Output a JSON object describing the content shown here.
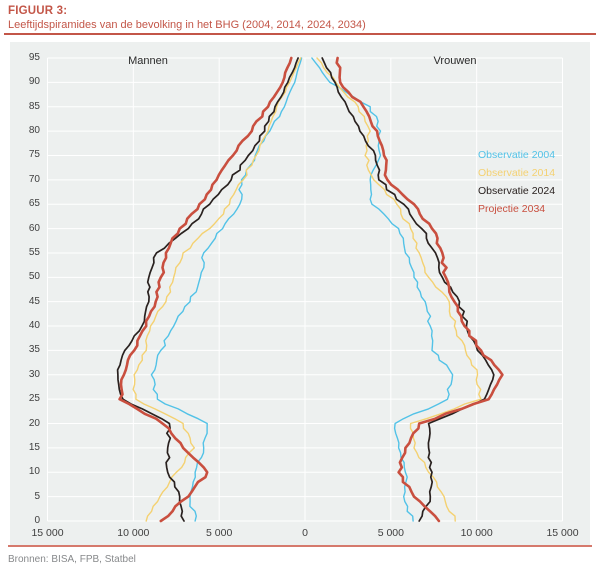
{
  "page": {
    "figure_label": "FIGUUR 3:",
    "figure_title": "Leeftijdspiramides van de bevolking in het BHG (2004, 2014, 2024, 2034)",
    "source": "Bronnen: BISA, FPB, Statbel"
  },
  "colors": {
    "accent": "#c35648",
    "rule_bottom": "#d5796c",
    "panel_bg": "#edf0ef",
    "grid": "#ffffff",
    "axis_text": "#3f3f3f",
    "side_label_text": "#2b2b2b",
    "source_text": "#87898b"
  },
  "chart_data": {
    "type": "line",
    "subtype": "population-pyramid",
    "title": "Leeftijdspiramides van de bevolking in het BHG (2004, 2014, 2024, 2034)",
    "left_panel_label": "Mannen",
    "right_panel_label": "Vrouwen",
    "grid": true,
    "legend_position": "inside-right",
    "age_ticks": [
      0,
      5,
      10,
      15,
      20,
      25,
      30,
      35,
      40,
      45,
      50,
      55,
      60,
      65,
      70,
      75,
      80,
      85,
      90,
      95
    ],
    "x_ticks": [
      {
        "value": -15000,
        "label": "15 000"
      },
      {
        "value": -10000,
        "label": "10 000"
      },
      {
        "value": -5000,
        "label": "5 000"
      },
      {
        "value": 0,
        "label": "0"
      },
      {
        "value": 5000,
        "label": "5 000"
      },
      {
        "value": 10000,
        "label": "10 000"
      },
      {
        "value": 15000,
        "label": "15 000"
      }
    ],
    "xlim_persons": [
      -15000,
      15000
    ],
    "ylim_ages": [
      0,
      95
    ],
    "ages": [
      0,
      5,
      10,
      15,
      20,
      25,
      30,
      35,
      40,
      45,
      50,
      55,
      60,
      65,
      70,
      75,
      80,
      85,
      90,
      95
    ],
    "series": [
      {
        "name": "Observatie 2004",
        "color": "#52c2e7",
        "stroke_width": 1.4,
        "men": [
          6400,
          6700,
          6400,
          5900,
          5700,
          8600,
          8950,
          8400,
          7650,
          6700,
          6100,
          5900,
          4800,
          3800,
          3700,
          2900,
          2050,
          1200,
          600,
          200
        ],
        "women": [
          6300,
          5750,
          5850,
          5450,
          5250,
          8300,
          8600,
          7400,
          7300,
          7000,
          6350,
          5850,
          5450,
          3900,
          3800,
          4400,
          4400,
          3800,
          1450,
          400
        ]
      },
      {
        "name": "Observatie 2014",
        "color": "#f4d171",
        "stroke_width": 1.4,
        "men": [
          9250,
          8450,
          7500,
          6450,
          7100,
          9850,
          9950,
          9250,
          9000,
          8100,
          7650,
          7100,
          5550,
          4400,
          3600,
          2850,
          2150,
          1650,
          900,
          250
        ],
        "women": [
          8750,
          8100,
          7200,
          6350,
          6150,
          10250,
          10050,
          9350,
          8700,
          8400,
          7200,
          6650,
          6150,
          5350,
          4000,
          3500,
          3800,
          3100,
          1800,
          700
        ]
      },
      {
        "name": "Observatie 2024",
        "color": "#29211f",
        "stroke_width": 1.7,
        "men": [
          7050,
          7300,
          8000,
          8000,
          7900,
          10600,
          10900,
          10500,
          9500,
          9100,
          9100,
          8650,
          6800,
          5550,
          4300,
          3300,
          2350,
          1750,
          1000,
          400
        ],
        "women": [
          6650,
          7300,
          7400,
          7200,
          7200,
          10450,
          11000,
          10050,
          9400,
          9000,
          8000,
          7600,
          6800,
          5750,
          4300,
          4100,
          3200,
          2450,
          1750,
          1000
        ]
      },
      {
        "name": "Projectie 2034",
        "color": "#c94f3f",
        "stroke_width": 2.6,
        "men": [
          8400,
          6800,
          5700,
          7100,
          8300,
          10800,
          10550,
          9950,
          9250,
          8700,
          8400,
          8100,
          7300,
          6150,
          5150,
          4200,
          3100,
          2150,
          1300,
          800
        ],
        "women": [
          7800,
          6350,
          5450,
          5850,
          6650,
          10700,
          11500,
          10250,
          9300,
          8700,
          8200,
          8000,
          7400,
          6350,
          4800,
          4600,
          4200,
          3400,
          2050,
          1900
        ]
      }
    ]
  }
}
